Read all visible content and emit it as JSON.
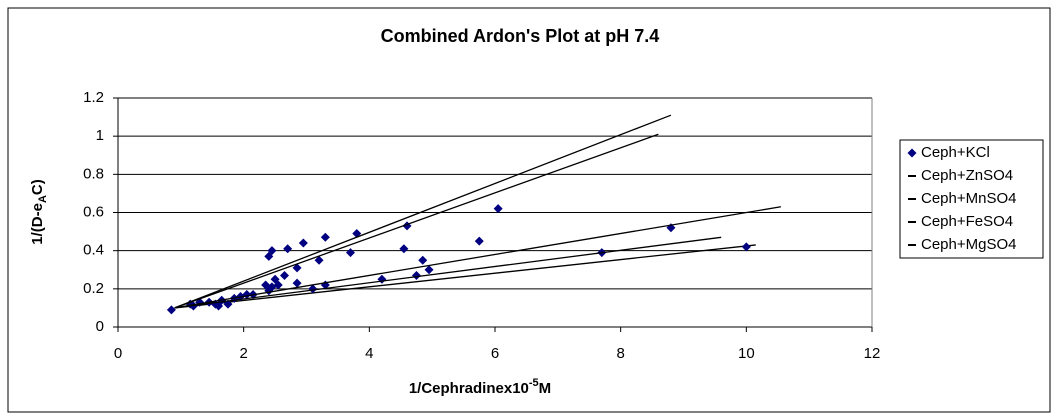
{
  "chart_data": {
    "type": "scatter",
    "title": "Combined Ardon's Plot at pH 7.4",
    "ylabel_parts": [
      "1/(D-e",
      "A",
      "C)"
    ],
    "xlabel_parts": [
      "1/Cephradinex10",
      "-5",
      "M"
    ],
    "xlim": [
      0,
      12
    ],
    "xticks": [
      0,
      2,
      4,
      6,
      8,
      10,
      12
    ],
    "ylim": [
      0,
      1.2
    ],
    "yticks": [
      0,
      0.2,
      0.4,
      0.6,
      0.8,
      1,
      1.2
    ],
    "grid": true,
    "legend": "right",
    "series": [
      {
        "name": "Ceph+KCl",
        "color": "#000080",
        "marker": "diamond",
        "x": [
          0.85,
          1.15,
          1.2,
          1.3,
          1.45,
          1.55,
          1.6,
          1.65,
          1.75,
          1.85,
          1.95,
          2.05,
          2.15,
          2.35,
          2.4,
          2.4,
          2.45,
          2.45,
          2.5,
          2.55,
          2.65,
          2.7,
          2.85,
          2.85,
          2.95,
          3.1,
          3.2,
          3.3,
          3.3,
          3.7,
          3.8,
          4.2,
          4.55,
          4.6,
          4.75,
          4.85,
          4.95,
          5.75,
          6.05,
          7.7,
          8.8,
          10.0
        ],
        "values": [
          0.09,
          0.12,
          0.11,
          0.13,
          0.13,
          0.12,
          0.11,
          0.14,
          0.12,
          0.15,
          0.16,
          0.17,
          0.17,
          0.22,
          0.19,
          0.37,
          0.21,
          0.4,
          0.25,
          0.22,
          0.27,
          0.41,
          0.31,
          0.23,
          0.44,
          0.2,
          0.35,
          0.22,
          0.47,
          0.39,
          0.49,
          0.25,
          0.41,
          0.53,
          0.27,
          0.35,
          0.3,
          0.45,
          0.62,
          0.39,
          0.52,
          0.42
        ],
        "trend_x": [
          0.9,
          10.15
        ],
        "trend_values": [
          0.1,
          0.43
        ]
      },
      {
        "name": "Ceph+ZnSO4",
        "color": "#000000",
        "marker": "line",
        "x": [
          0.9,
          8.8
        ],
        "values": [
          0.1,
          1.11
        ]
      },
      {
        "name": "Ceph+MnSO4",
        "color": "#000000",
        "marker": "line",
        "x": [
          0.9,
          8.6
        ],
        "values": [
          0.1,
          1.01
        ]
      },
      {
        "name": "Ceph+FeSO4",
        "color": "#000000",
        "marker": "line",
        "x": [
          0.9,
          10.55
        ],
        "values": [
          0.1,
          0.63
        ]
      },
      {
        "name": "Ceph+MgSO4",
        "color": "#000000",
        "marker": "line",
        "x": [
          0.9,
          9.6
        ],
        "values": [
          0.1,
          0.47
        ]
      }
    ]
  }
}
